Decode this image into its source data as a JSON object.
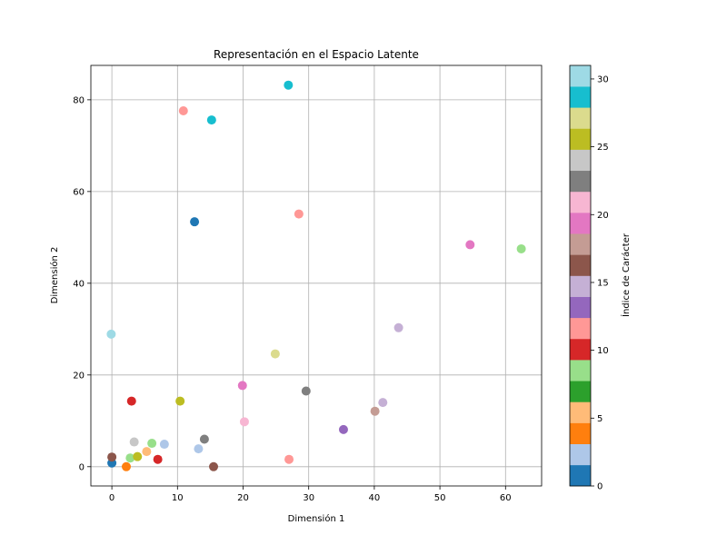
{
  "chart_data": {
    "type": "scatter",
    "title": "Representación en el Espacio Latente",
    "xlabel": "Dimensión 1",
    "ylabel": "Dimensión 2",
    "xlim": [
      -3.2,
      65.5
    ],
    "ylim": [
      -4.2,
      87.5
    ],
    "xticks": [
      0,
      10,
      20,
      30,
      40,
      50,
      60
    ],
    "yticks": [
      0,
      20,
      40,
      60,
      80
    ],
    "grid": true,
    "colorbar": {
      "label": "Índice de Carácter",
      "range": [
        0,
        31
      ],
      "ticks": [
        0,
        5,
        10,
        15,
        20,
        25,
        30
      ],
      "colormap": "tab20",
      "colors": [
        "#1f77b4",
        "#aec7e8",
        "#ff7f0e",
        "#ffbb78",
        "#2ca02c",
        "#98df8a",
        "#d62728",
        "#ff9896",
        "#9467bd",
        "#c5b0d5",
        "#8c564b",
        "#c49c94",
        "#e377c2",
        "#f7b6d2",
        "#7f7f7f",
        "#c7c7c7",
        "#bcbd22",
        "#dbdb8d",
        "#17becf",
        "#9edae5"
      ]
    },
    "points": [
      {
        "x": 0.0,
        "y": 0.8,
        "c": 0
      },
      {
        "x": 12.6,
        "y": 53.4,
        "c": 1
      },
      {
        "x": 8.0,
        "y": 4.9,
        "c": 3
      },
      {
        "x": 13.2,
        "y": 3.9,
        "c": 3
      },
      {
        "x": 2.2,
        "y": 0.0,
        "c": 4
      },
      {
        "x": 5.3,
        "y": 3.3,
        "c": 6
      },
      {
        "x": 6.1,
        "y": 5.1,
        "c": 8
      },
      {
        "x": 62.4,
        "y": 47.5,
        "c": 8
      },
      {
        "x": 2.8,
        "y": 1.9,
        "c": 9
      },
      {
        "x": 3.0,
        "y": 14.3,
        "c": 10
      },
      {
        "x": 7.0,
        "y": 1.6,
        "c": 10
      },
      {
        "x": 28.5,
        "y": 55.1,
        "c": 11
      },
      {
        "x": 10.9,
        "y": 77.6,
        "c": 12
      },
      {
        "x": 27.0,
        "y": 1.6,
        "c": 12
      },
      {
        "x": 35.3,
        "y": 8.1,
        "c": 13
      },
      {
        "x": 41.3,
        "y": 14.0,
        "c": 15
      },
      {
        "x": 43.7,
        "y": 30.3,
        "c": 15
      },
      {
        "x": 0.0,
        "y": 2.1,
        "c": 17
      },
      {
        "x": 15.5,
        "y": 0.0,
        "c": 17
      },
      {
        "x": 40.1,
        "y": 12.1,
        "c": 18
      },
      {
        "x": 19.9,
        "y": 17.7,
        "c": 19
      },
      {
        "x": 54.6,
        "y": 48.4,
        "c": 19
      },
      {
        "x": 20.2,
        "y": 9.8,
        "c": 21
      },
      {
        "x": 14.1,
        "y": 6.0,
        "c": 23
      },
      {
        "x": 29.6,
        "y": 16.5,
        "c": 23
      },
      {
        "x": 3.4,
        "y": 5.4,
        "c": 24
      },
      {
        "x": 3.9,
        "y": 2.2,
        "c": 25
      },
      {
        "x": 10.4,
        "y": 14.3,
        "c": 25
      },
      {
        "x": 24.9,
        "y": 24.6,
        "c": 27
      },
      {
        "x": 15.2,
        "y": 75.6,
        "c": 29
      },
      {
        "x": 26.9,
        "y": 83.2,
        "c": 29
      },
      {
        "x": -0.1,
        "y": 28.9,
        "c": 31
      }
    ]
  }
}
